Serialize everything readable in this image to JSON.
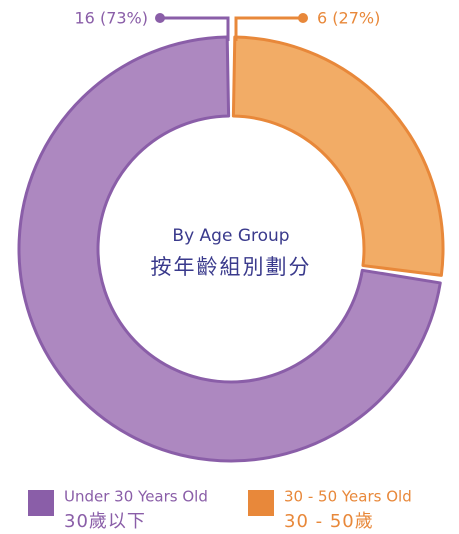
{
  "chart_data": {
    "type": "donut",
    "title": "By Age Group",
    "subtitle": "按年齡組別劃分",
    "categories": [
      {
        "name": "Under 30 Years Old",
        "name_zh": "30歲以下"
      },
      {
        "name": "30 - 50 Years Old",
        "name_zh": "30 - 50歲"
      }
    ],
    "values": [
      16,
      6
    ],
    "value_labels": [
      "16 (73%)",
      "6 (27%)"
    ],
    "colors": [
      "#ad88c0",
      "#f2ac66"
    ],
    "stroke_colors": [
      "#8a5ea8",
      "#e8883a"
    ]
  }
}
